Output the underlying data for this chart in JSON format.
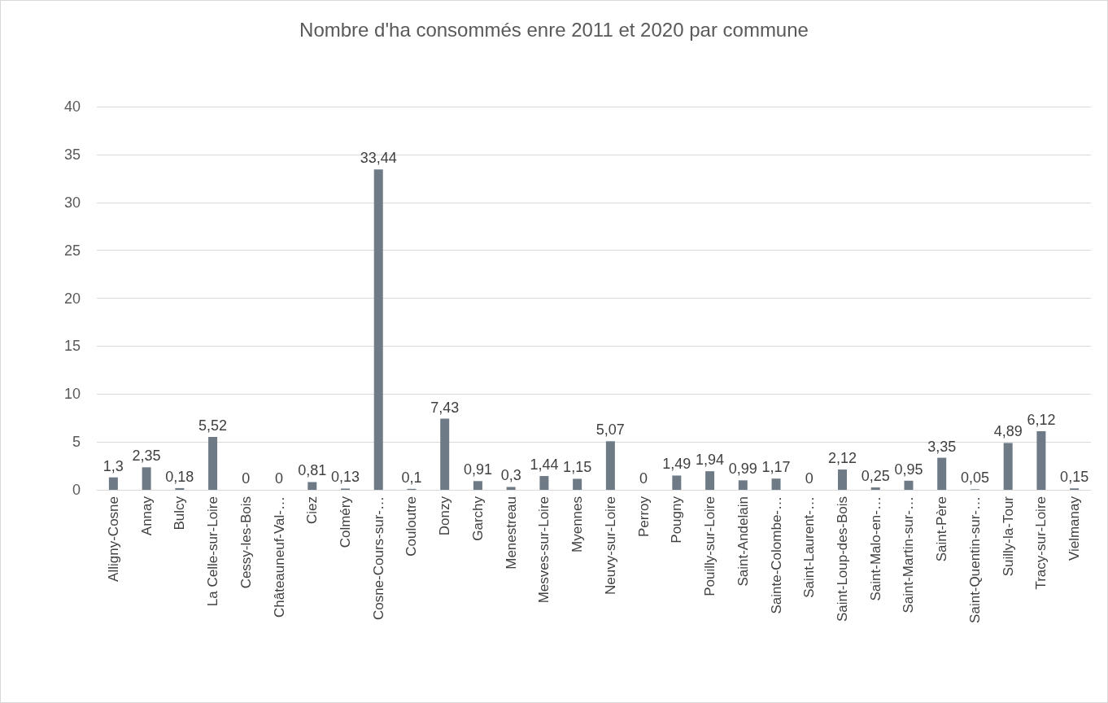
{
  "chart_data": {
    "type": "bar",
    "title": "Nombre d'ha consommés enre 2011 et 2020 par commune",
    "categories": [
      "Alligny-Cosne",
      "Annay",
      "Bulcy",
      "La Celle-sur-Loire",
      "Cessy-les-Bois",
      "Châteauneuf-Val-…",
      "Ciez",
      "Colméry",
      "Cosne-Cours-sur-…",
      "Couloutre",
      "Donzy",
      "Garchy",
      "Menestreau",
      "Mesves-sur-Loire",
      "Myennes",
      "Neuvy-sur-Loire",
      "Perroy",
      "Pougny",
      "Pouilly-sur-Loire",
      "Saint-Andelain",
      "Sainte-Colombe-…",
      "Saint-Laurent-…",
      "Saint-Loup-des-Bois",
      "Saint-Malo-en-…",
      "Saint-Martin-sur-…",
      "Saint-Père",
      "Saint-Quentin-sur-…",
      "Suilly-la-Tour",
      "Tracy-sur-Loire",
      "Vielmanay"
    ],
    "values": [
      1.3,
      2.35,
      0.18,
      5.52,
      0,
      0,
      0.81,
      0.13,
      33.44,
      0.1,
      7.43,
      0.91,
      0.3,
      1.44,
      1.15,
      5.07,
      0,
      1.49,
      1.94,
      0.99,
      1.17,
      0,
      2.12,
      0.25,
      0.95,
      3.35,
      0.05,
      4.89,
      6.12,
      0.15
    ],
    "color": "#6e7b86",
    "ylim": [
      0,
      40
    ],
    "yticks": [
      0,
      5,
      10,
      15,
      20,
      25,
      30,
      35,
      40
    ],
    "value_labels": [
      "1,3",
      "2,35",
      "0,18",
      "5,52",
      "0",
      "0",
      "0,81",
      "0,13",
      "33,44",
      "0,1",
      "7,43",
      "0,91",
      "0,3",
      "1,44",
      "1,15",
      "5,07",
      "0",
      "1,49",
      "1,94",
      "0,99",
      "1,17",
      "0",
      "2,12",
      "0,25",
      "0,95",
      "3,35",
      "0,05",
      "4,89",
      "6,12",
      "0,15"
    ],
    "grid": "y"
  }
}
